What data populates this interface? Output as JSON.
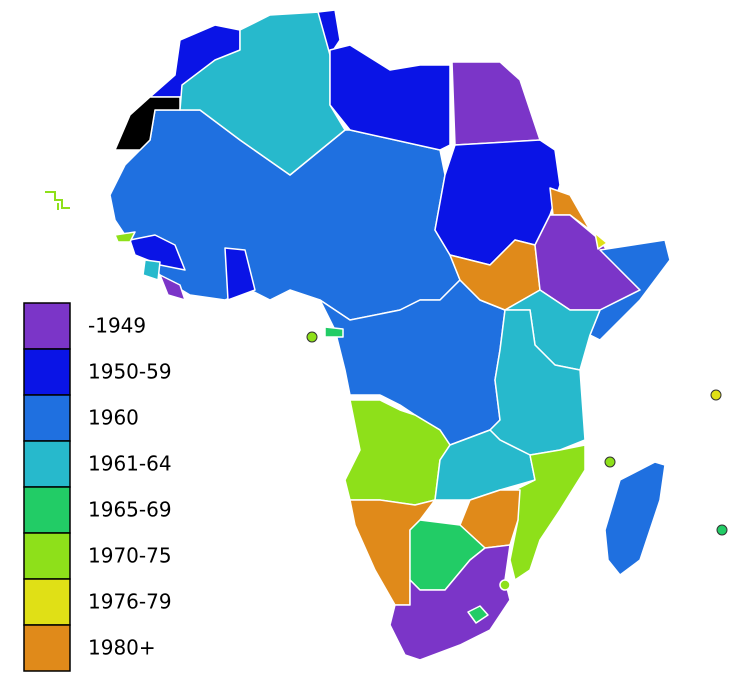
{
  "legend": [
    {
      "label": "-1949",
      "color": "#7b35c8"
    },
    {
      "label": "1950-59",
      "color": "#0a14e6"
    },
    {
      "label": "1960",
      "color": "#1f70e0"
    },
    {
      "label": "1961-64",
      "color": "#27b9cc"
    },
    {
      "label": "1965-69",
      "color": "#22cc66"
    },
    {
      "label": "1970-75",
      "color": "#8ee01a"
    },
    {
      "label": "1976-79",
      "color": "#e0e016"
    },
    {
      "label": "1980+",
      "color": "#e08a1a"
    }
  ]
}
